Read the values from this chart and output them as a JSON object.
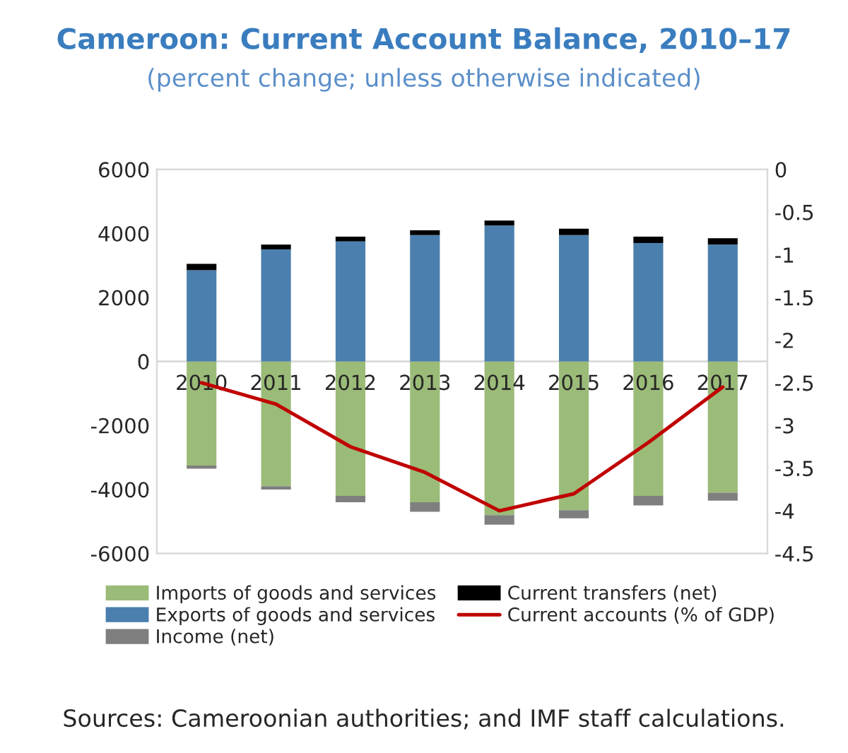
{
  "chart_data": {
    "type": "bar",
    "stacked": true,
    "title": "Cameroon: Current Account Balance, 2010–17",
    "subtitle": "(percent change; unless otherwise indicated)",
    "categories": [
      "2010",
      "2011",
      "2012",
      "2013",
      "2014",
      "2015",
      "2016",
      "2017"
    ],
    "series": [
      {
        "name": "Imports of goods and services",
        "color": "#9bbb78",
        "values": [
          -3250,
          -3900,
          -4200,
          -4400,
          -4800,
          -4650,
          -4200,
          -4100
        ]
      },
      {
        "name": "Exports of goods and services",
        "color": "#4a7fae",
        "values": [
          2850,
          3500,
          3750,
          3950,
          4250,
          3950,
          3700,
          3650
        ]
      },
      {
        "name": "Income (net)",
        "color": "#7f7f7f",
        "values": [
          -100,
          -100,
          -200,
          -300,
          -300,
          -250,
          -300,
          -250
        ]
      },
      {
        "name": "Current transfers (net)",
        "color": "#000000",
        "values": [
          200,
          150,
          150,
          150,
          150,
          200,
          200,
          200
        ]
      },
      {
        "name": "Current accounts (% of GDP)",
        "type": "line",
        "axis": "y2",
        "color": "#c00000",
        "values": [
          -2.5,
          -2.75,
          -3.25,
          -3.55,
          -4.0,
          -3.8,
          -3.2,
          -2.55
        ]
      }
    ],
    "ylim": [
      -6000,
      6000
    ],
    "yticks": [
      -6000,
      -4000,
      -2000,
      0,
      2000,
      4000,
      6000
    ],
    "y2lim": [
      -4.5,
      0
    ],
    "y2ticks": [
      -4.5,
      -4,
      -3.5,
      -3,
      -2.5,
      -2,
      -1.5,
      -1,
      -0.5,
      0
    ],
    "legend": "bottom",
    "grid": false,
    "annotations": [
      "Sources: Cameroonian authorities; and IMF staff calculations."
    ]
  }
}
